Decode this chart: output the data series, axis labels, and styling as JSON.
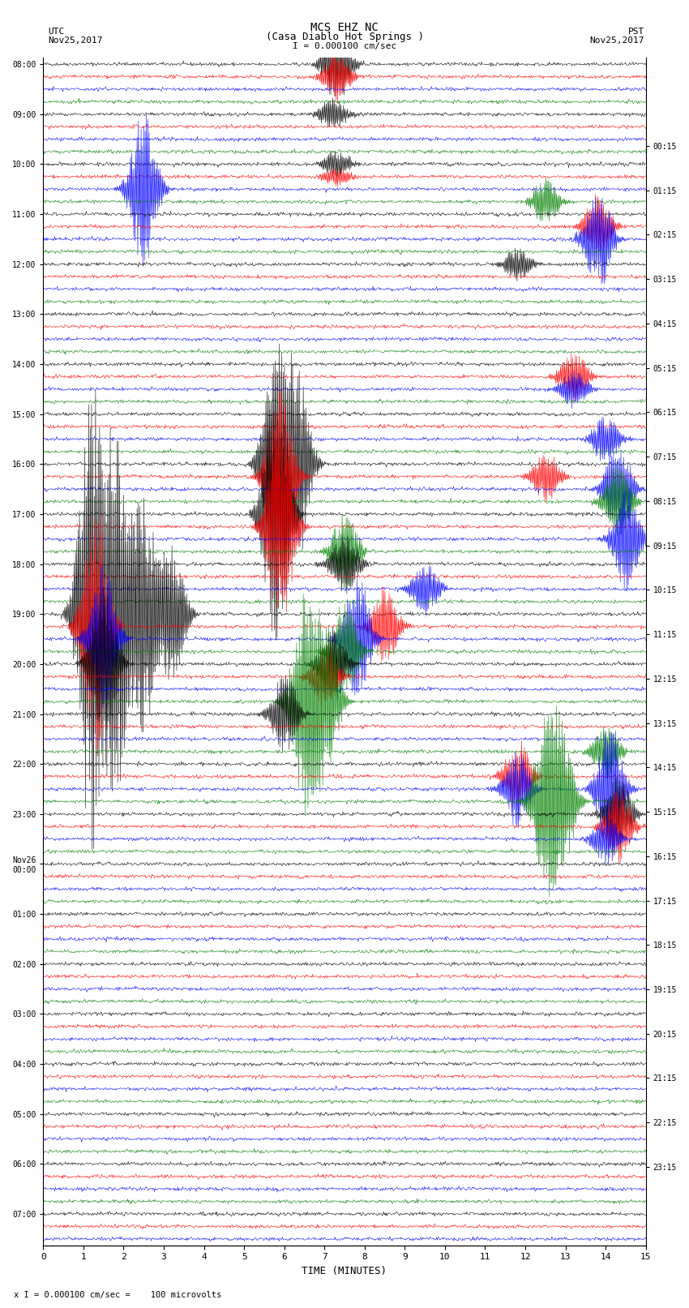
{
  "title_line1": "MCS EHZ NC",
  "title_line2": "(Casa Diablo Hot Springs )",
  "scale_label": "I = 0.000100 cm/sec",
  "bottom_label": "x I = 0.000100 cm/sec =    100 microvolts",
  "utc_label": "UTC",
  "utc_date": "Nov25,2017",
  "pst_label": "PST",
  "pst_date": "Nov25,2017",
  "xlabel": "TIME (MINUTES)",
  "xlim": [
    0,
    15
  ],
  "xticks": [
    0,
    1,
    2,
    3,
    4,
    5,
    6,
    7,
    8,
    9,
    10,
    11,
    12,
    13,
    14,
    15
  ],
  "colors": [
    "black",
    "red",
    "blue",
    "green"
  ],
  "background_color": "#ffffff",
  "utc_times": [
    "08:00",
    "",
    "",
    "",
    "09:00",
    "",
    "",
    "",
    "10:00",
    "",
    "",
    "",
    "11:00",
    "",
    "",
    "",
    "12:00",
    "",
    "",
    "",
    "13:00",
    "",
    "",
    "",
    "14:00",
    "",
    "",
    "",
    "15:00",
    "",
    "",
    "",
    "16:00",
    "",
    "",
    "",
    "17:00",
    "",
    "",
    "",
    "18:00",
    "",
    "",
    "",
    "19:00",
    "",
    "",
    "",
    "20:00",
    "",
    "",
    "",
    "21:00",
    "",
    "",
    "",
    "22:00",
    "",
    "",
    "",
    "23:00",
    "",
    "",
    "",
    "Nov26\n00:00",
    "",
    "",
    "",
    "01:00",
    "",
    "",
    "",
    "02:00",
    "",
    "",
    "",
    "03:00",
    "",
    "",
    "",
    "04:00",
    "",
    "",
    "",
    "05:00",
    "",
    "",
    "",
    "06:00",
    "",
    "",
    "",
    "07:00",
    "",
    ""
  ],
  "pst_times": [
    "00:15",
    "",
    "",
    "",
    "01:15",
    "",
    "",
    "",
    "02:15",
    "",
    "",
    "",
    "03:15",
    "",
    "",
    "",
    "04:15",
    "",
    "",
    "",
    "05:15",
    "",
    "",
    "",
    "06:15",
    "",
    "",
    "",
    "07:15",
    "",
    "",
    "",
    "08:15",
    "",
    "",
    "",
    "09:15",
    "",
    "",
    "",
    "10:15",
    "",
    "",
    "",
    "11:15",
    "",
    "",
    "",
    "12:15",
    "",
    "",
    "",
    "13:15",
    "",
    "",
    "",
    "14:15",
    "",
    "",
    "",
    "15:15",
    "",
    "",
    "",
    "16:15",
    "",
    "",
    "",
    "17:15",
    "",
    "",
    "",
    "18:15",
    "",
    "",
    "",
    "19:15",
    "",
    "",
    "",
    "20:15",
    "",
    "",
    "",
    "21:15",
    "",
    "",
    "",
    "22:15",
    "",
    "",
    "",
    "23:15",
    "",
    ""
  ],
  "seed": 42
}
